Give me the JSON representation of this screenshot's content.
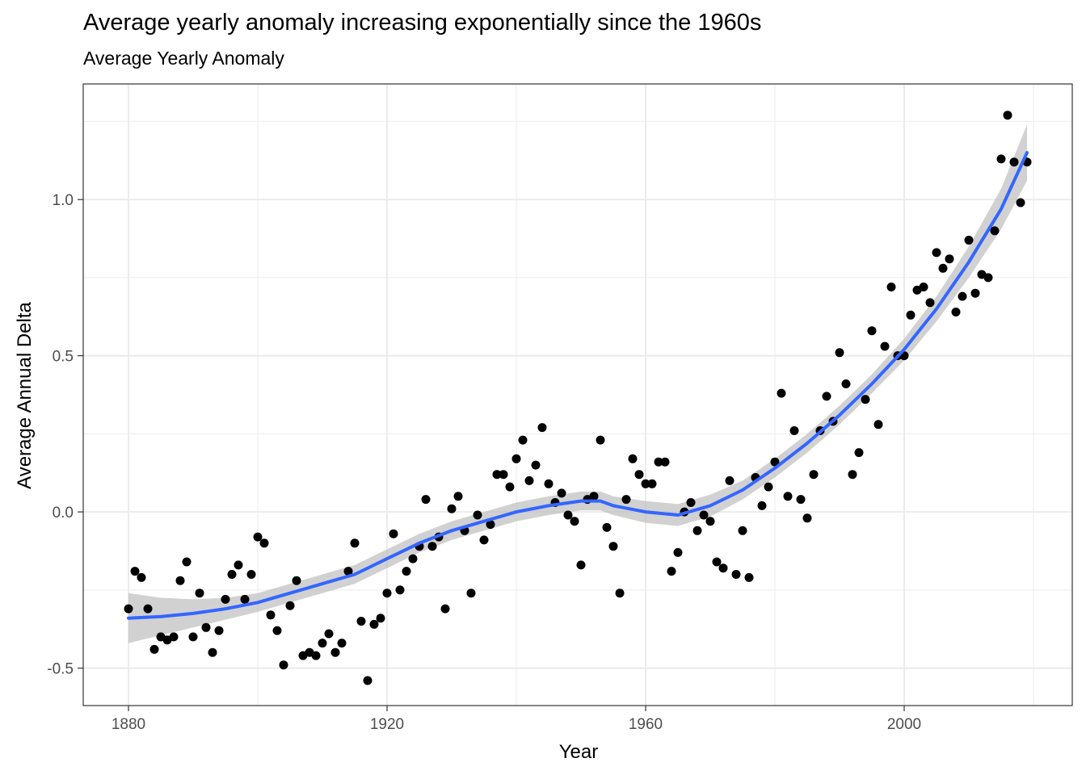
{
  "chart_data": {
    "type": "scatter",
    "title": "Average yearly anomaly increasing exponentially since the 1960s",
    "subtitle": "Average Yearly Anomaly",
    "xlabel": "Year",
    "ylabel": "Average Annual Delta",
    "xlim": [
      1873,
      2026
    ],
    "ylim": [
      -0.62,
      1.37
    ],
    "xticks": [
      1880,
      1920,
      1960,
      2000
    ],
    "yticks": [
      -0.5,
      0.0,
      0.5,
      1.0
    ],
    "xtick_labels": [
      "1880",
      "1920",
      "1960",
      "2000"
    ],
    "ytick_labels": [
      "-0.5",
      "0.0",
      "0.5",
      "1.0"
    ],
    "grid": true,
    "point_color": "#000000",
    "smooth_color": "#3366FF",
    "band_color": "#BEBEBE",
    "points": {
      "x": [
        1880,
        1881,
        1882,
        1883,
        1884,
        1885,
        1886,
        1887,
        1888,
        1889,
        1890,
        1891,
        1892,
        1893,
        1894,
        1895,
        1896,
        1897,
        1898,
        1899,
        1900,
        1901,
        1902,
        1903,
        1904,
        1905,
        1906,
        1907,
        1908,
        1909,
        1910,
        1911,
        1912,
        1913,
        1914,
        1915,
        1916,
        1917,
        1918,
        1919,
        1920,
        1921,
        1922,
        1923,
        1924,
        1925,
        1926,
        1927,
        1928,
        1929,
        1930,
        1931,
        1932,
        1933,
        1934,
        1935,
        1936,
        1937,
        1938,
        1939,
        1940,
        1941,
        1942,
        1943,
        1944,
        1945,
        1946,
        1947,
        1948,
        1949,
        1950,
        1951,
        1952,
        1953,
        1954,
        1955,
        1956,
        1957,
        1958,
        1959,
        1960,
        1961,
        1962,
        1963,
        1964,
        1965,
        1966,
        1967,
        1968,
        1969,
        1970,
        1971,
        1972,
        1973,
        1974,
        1975,
        1976,
        1977,
        1978,
        1979,
        1980,
        1981,
        1982,
        1983,
        1984,
        1985,
        1986,
        1987,
        1988,
        1989,
        1990,
        1991,
        1992,
        1993,
        1994,
        1995,
        1996,
        1997,
        1998,
        1999,
        2000,
        2001,
        2002,
        2003,
        2004,
        2005,
        2006,
        2007,
        2008,
        2009,
        2010,
        2011,
        2012,
        2013,
        2014,
        2015,
        2016,
        2017,
        2018,
        2019
      ],
      "y": [
        -0.31,
        -0.19,
        -0.21,
        -0.31,
        -0.44,
        -0.4,
        -0.41,
        -0.4,
        -0.22,
        -0.16,
        -0.4,
        -0.26,
        -0.37,
        -0.45,
        -0.38,
        -0.28,
        -0.2,
        -0.17,
        -0.28,
        -0.2,
        -0.08,
        -0.1,
        -0.33,
        -0.38,
        -0.49,
        -0.3,
        -0.22,
        -0.46,
        -0.45,
        -0.46,
        -0.42,
        -0.39,
        -0.45,
        -0.42,
        -0.19,
        -0.1,
        -0.35,
        -0.54,
        -0.36,
        -0.34,
        -0.26,
        -0.07,
        -0.25,
        -0.19,
        -0.15,
        -0.11,
        0.04,
        -0.11,
        -0.08,
        -0.31,
        0.01,
        0.05,
        -0.06,
        -0.26,
        -0.01,
        -0.09,
        -0.04,
        0.12,
        0.12,
        0.08,
        0.17,
        0.23,
        0.1,
        0.15,
        0.27,
        0.09,
        0.03,
        0.06,
        -0.01,
        -0.03,
        -0.17,
        0.04,
        0.05,
        0.23,
        -0.05,
        -0.11,
        -0.26,
        0.04,
        0.17,
        0.12,
        0.09,
        0.09,
        0.16,
        0.16,
        -0.19,
        -0.13,
        0.0,
        0.03,
        -0.06,
        -0.01,
        -0.03,
        -0.16,
        -0.18,
        0.1,
        -0.2,
        -0.06,
        -0.21,
        0.11,
        0.02,
        0.08,
        0.16,
        0.38,
        0.05,
        0.26,
        0.04,
        -0.02,
        0.12,
        0.26,
        0.37,
        0.29,
        0.51,
        0.41,
        0.12,
        0.19,
        0.36,
        0.58,
        0.28,
        0.53,
        0.72,
        0.5,
        0.5,
        0.63,
        0.71,
        0.72,
        0.67,
        0.83,
        0.78,
        0.81,
        0.64,
        0.69,
        0.87,
        0.7,
        0.76,
        0.75,
        0.9,
        1.13,
        1.27,
        1.12,
        0.99,
        1.12
      ]
    },
    "smooth": {
      "x": [
        1880,
        1885,
        1890,
        1895,
        1900,
        1905,
        1910,
        1915,
        1920,
        1925,
        1930,
        1935,
        1940,
        1945,
        1950,
        1953,
        1955,
        1960,
        1965,
        1970,
        1975,
        1980,
        1985,
        1990,
        1995,
        2000,
        2005,
        2010,
        2015,
        2019
      ],
      "y": [
        -0.34,
        -0.335,
        -0.325,
        -0.31,
        -0.29,
        -0.26,
        -0.23,
        -0.2,
        -0.15,
        -0.1,
        -0.06,
        -0.03,
        0.0,
        0.02,
        0.035,
        0.035,
        0.02,
        0.0,
        -0.01,
        0.02,
        0.07,
        0.14,
        0.22,
        0.31,
        0.41,
        0.52,
        0.65,
        0.8,
        0.97,
        1.15
      ],
      "se": [
        0.08,
        0.06,
        0.045,
        0.035,
        0.03,
        0.03,
        0.03,
        0.03,
        0.03,
        0.03,
        0.03,
        0.03,
        0.03,
        0.03,
        0.03,
        0.03,
        0.03,
        0.035,
        0.035,
        0.035,
        0.03,
        0.03,
        0.03,
        0.03,
        0.03,
        0.035,
        0.04,
        0.05,
        0.065,
        0.09
      ]
    }
  }
}
